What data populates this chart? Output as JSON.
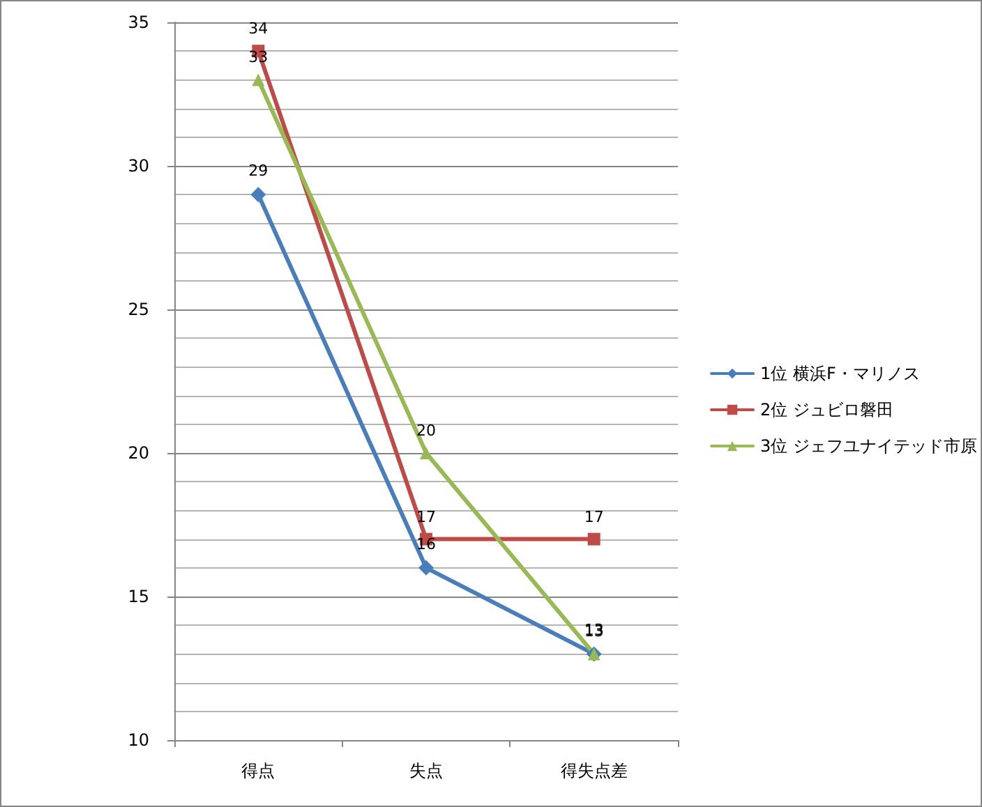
{
  "chart_data": {
    "type": "line",
    "categories": [
      "得点",
      "失点",
      "得失点差"
    ],
    "series": [
      {
        "name": "1位 横浜F・マリノス",
        "color": "#4a7ebb",
        "marker": "diamond",
        "values": [
          29,
          16,
          13
        ]
      },
      {
        "name": "2位 ジュビロ磐田",
        "color": "#be4b48",
        "marker": "square",
        "values": [
          34,
          17,
          17
        ]
      },
      {
        "name": "3位 ジェフユナイテッド市原",
        "color": "#98b954",
        "marker": "triangle",
        "values": [
          33,
          20,
          13
        ]
      }
    ],
    "ylim": [
      10,
      35
    ],
    "yticks": [
      10,
      {
        "value": 11,
        "label": null
      },
      {
        "value": 12,
        "label": null
      },
      {
        "value": 13,
        "label": null
      },
      {
        "value": 14,
        "label": null
      },
      15,
      {
        "value": 16,
        "label": null
      },
      {
        "value": 17,
        "label": null
      },
      {
        "value": 18,
        "label": null
      },
      {
        "value": 19,
        "label": null
      },
      20,
      {
        "value": 21,
        "label": null
      },
      {
        "value": 22,
        "label": null
      },
      {
        "value": 23,
        "label": null
      },
      {
        "value": 24,
        "label": null
      },
      25,
      {
        "value": 26,
        "label": null
      },
      {
        "value": 27,
        "label": null
      },
      {
        "value": 28,
        "label": null
      },
      {
        "value": 29,
        "label": null
      },
      30,
      {
        "value": 31,
        "label": null
      },
      {
        "value": 32,
        "label": null
      },
      {
        "value": 33,
        "label": null
      },
      {
        "value": 34,
        "label": null
      },
      35
    ],
    "grid": "y",
    "legend": "right",
    "data_labels": true
  }
}
